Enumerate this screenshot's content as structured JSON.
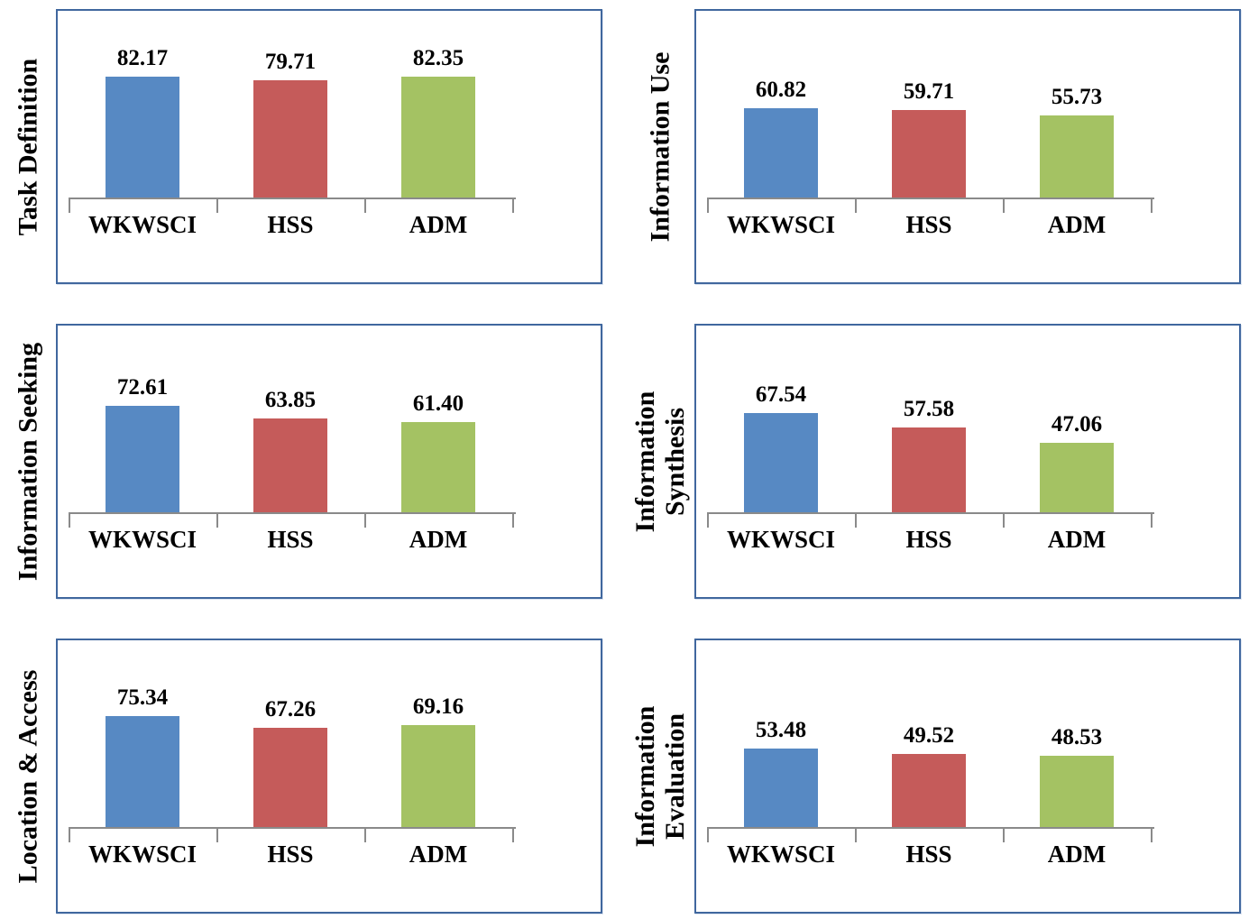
{
  "page": {
    "background": "#ffffff",
    "description": "Figure with six bar charts comparing WKWSCI, HSS and ADM scores across information literacy stages",
    "legend": "none"
  },
  "styles": {
    "bar_colors": [
      "#5789C3",
      "#C55B5A",
      "#A4C263"
    ],
    "box_border_color": "#40679E",
    "axis_color": "#8A8A8A",
    "text_color": "#000000"
  },
  "chart_data": [
    {
      "type": "bar",
      "title": "Task Definition",
      "title_lines": [
        "Task Definition"
      ],
      "title_position": "left-rotated",
      "categories": [
        "WKWSCI",
        "HSS",
        "ADM"
      ],
      "values": [
        82.17,
        79.71,
        82.35
      ],
      "labels": [
        "82.17",
        "79.71",
        "82.35"
      ],
      "xlabel": "",
      "ylabel": "",
      "y_axis": "hidden",
      "grid": "off",
      "value_labels": "above bars"
    },
    {
      "type": "bar",
      "title": "Information Use",
      "title_lines": [
        "Information Use"
      ],
      "title_position": "left-rotated",
      "categories": [
        "WKWSCI",
        "HSS",
        "ADM"
      ],
      "values": [
        60.82,
        59.71,
        55.73
      ],
      "labels": [
        "60.82",
        "59.71",
        "55.73"
      ],
      "xlabel": "",
      "ylabel": "",
      "y_axis": "hidden",
      "grid": "off",
      "value_labels": "above bars"
    },
    {
      "type": "bar",
      "title": "Information Seeking",
      "title_lines": [
        "Information Seeking"
      ],
      "title_position": "left-rotated",
      "categories": [
        "WKWSCI",
        "HSS",
        "ADM"
      ],
      "values": [
        72.61,
        63.85,
        61.4
      ],
      "labels": [
        "72.61",
        "63.85",
        "61.40"
      ],
      "xlabel": "",
      "ylabel": "",
      "y_axis": "hidden",
      "grid": "off",
      "value_labels": "above bars"
    },
    {
      "type": "bar",
      "title": "Information Synthesis",
      "title_lines": [
        "Information",
        "Synthesis"
      ],
      "title_position": "left-rotated",
      "categories": [
        "WKWSCI",
        "HSS",
        "ADM"
      ],
      "values": [
        67.54,
        57.58,
        47.06
      ],
      "labels": [
        "67.54",
        "57.58",
        "47.06"
      ],
      "xlabel": "",
      "ylabel": "",
      "y_axis": "hidden",
      "grid": "off",
      "value_labels": "above bars"
    },
    {
      "type": "bar",
      "title": "Location & Access",
      "title_lines": [
        "Location & Access"
      ],
      "title_position": "left-rotated",
      "categories": [
        "WKWSCI",
        "HSS",
        "ADM"
      ],
      "values": [
        75.34,
        67.26,
        69.16
      ],
      "labels": [
        "75.34",
        "67.26",
        "69.16"
      ],
      "xlabel": "",
      "ylabel": "",
      "y_axis": "hidden",
      "grid": "off",
      "value_labels": "above bars"
    },
    {
      "type": "bar",
      "title": "Information Evaluation",
      "title_lines": [
        "Information",
        "Evaluation"
      ],
      "title_position": "left-rotated",
      "categories": [
        "WKWSCI",
        "HSS",
        "ADM"
      ],
      "values": [
        53.48,
        49.52,
        48.53
      ],
      "labels": [
        "53.48",
        "49.52",
        "48.53"
      ],
      "xlabel": "",
      "ylabel": "",
      "y_axis": "hidden",
      "grid": "off",
      "value_labels": "above bars"
    }
  ]
}
